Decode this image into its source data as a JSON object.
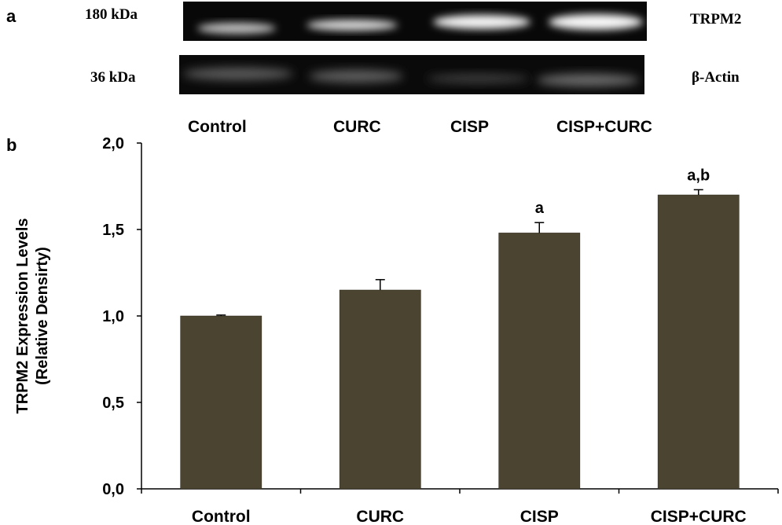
{
  "panel_a": {
    "letter": "a",
    "blot_trpm2": {
      "size_label": "180 kDa",
      "protein_label": "TRPM2"
    },
    "blot_actin": {
      "size_label": "36 kDa",
      "protein_label": "β-Actin"
    },
    "lane_labels": [
      "Control",
      "CURC",
      "CISP",
      "CISP+CURC"
    ]
  },
  "panel_b": {
    "letter": "b"
  },
  "chart_data": {
    "type": "bar",
    "categories": [
      "Control",
      "CURC",
      "CISP",
      "CISP+CURC"
    ],
    "values": [
      1.0,
      1.15,
      1.48,
      1.7
    ],
    "errors": [
      0.005,
      0.06,
      0.06,
      0.03
    ],
    "annotations": [
      "",
      "",
      "a",
      "a,b"
    ],
    "ylabel_line1": "TRPM2 Expression  Levels",
    "ylabel_line2": "(Relative Densirty)",
    "xlabel": "",
    "ylim": [
      0,
      2.0
    ],
    "yticks": [
      0,
      0.5,
      1.0,
      1.5,
      2.0
    ],
    "ytick_labels": [
      "0,0",
      "0,5",
      "1,0",
      "1,5",
      "2,0"
    ],
    "grid": false,
    "bar_color": "#4a4430"
  }
}
